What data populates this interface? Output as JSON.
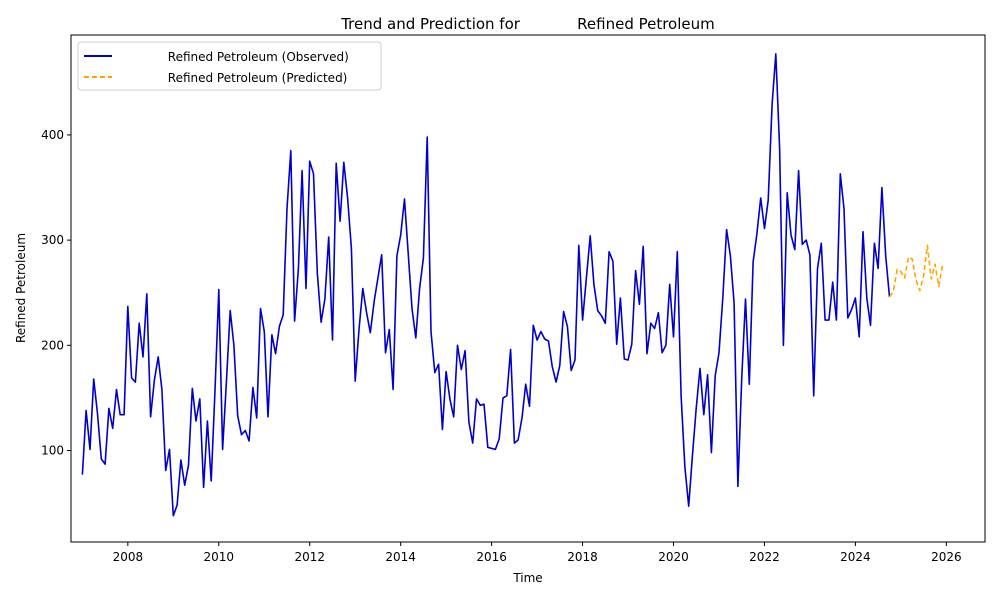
{
  "chart_data": {
    "type": "line",
    "title": "Trend and Prediction for            Refined Petroleum",
    "xlabel": "Time",
    "ylabel": "Refined Petroleum",
    "xlim": [
      2006.75,
      2026.85
    ],
    "ylim": [
      13,
      495
    ],
    "x_ticks": [
      2008,
      2010,
      2012,
      2014,
      2016,
      2018,
      2020,
      2022,
      2024,
      2026
    ],
    "y_ticks": [
      100,
      200,
      300,
      400
    ],
    "grid": false,
    "legend_position": "top-left",
    "colors": {
      "observed": "#0000cd",
      "predicted": "#ffa500"
    },
    "series": [
      {
        "name": "            Refined Petroleum (Observed)",
        "style": "solid",
        "x": [
          2007.0,
          2007.083,
          2007.167,
          2007.25,
          2007.333,
          2007.417,
          2007.5,
          2007.583,
          2007.667,
          2007.75,
          2007.833,
          2007.917,
          2008.0,
          2008.083,
          2008.167,
          2008.25,
          2008.333,
          2008.417,
          2008.5,
          2008.583,
          2008.667,
          2008.75,
          2008.833,
          2008.917,
          2009.0,
          2009.083,
          2009.167,
          2009.25,
          2009.333,
          2009.417,
          2009.5,
          2009.583,
          2009.667,
          2009.75,
          2009.833,
          2009.917,
          2010.0,
          2010.083,
          2010.167,
          2010.25,
          2010.333,
          2010.417,
          2010.5,
          2010.583,
          2010.667,
          2010.75,
          2010.833,
          2010.917,
          2011.0,
          2011.083,
          2011.167,
          2011.25,
          2011.333,
          2011.417,
          2011.5,
          2011.583,
          2011.667,
          2011.75,
          2011.833,
          2011.917,
          2012.0,
          2012.083,
          2012.167,
          2012.25,
          2012.333,
          2012.417,
          2012.5,
          2012.583,
          2012.667,
          2012.75,
          2012.833,
          2012.917,
          2013.0,
          2013.083,
          2013.167,
          2013.25,
          2013.333,
          2013.417,
          2013.5,
          2013.583,
          2013.667,
          2013.75,
          2013.833,
          2013.917,
          2014.0,
          2014.083,
          2014.167,
          2014.25,
          2014.333,
          2014.417,
          2014.5,
          2014.583,
          2014.667,
          2014.75,
          2014.833,
          2014.917,
          2015.0,
          2015.083,
          2015.167,
          2015.25,
          2015.333,
          2015.417,
          2015.5,
          2015.583,
          2015.667,
          2015.75,
          2015.833,
          2015.917,
          2016.0,
          2016.083,
          2016.167,
          2016.25,
          2016.333,
          2016.417,
          2016.5,
          2016.583,
          2016.667,
          2016.75,
          2016.833,
          2016.917,
          2017.0,
          2017.083,
          2017.167,
          2017.25,
          2017.333,
          2017.417,
          2017.5,
          2017.583,
          2017.667,
          2017.75,
          2017.833,
          2017.917,
          2018.0,
          2018.083,
          2018.167,
          2018.25,
          2018.333,
          2018.417,
          2018.5,
          2018.583,
          2018.667,
          2018.75,
          2018.833,
          2018.917,
          2019.0,
          2019.083,
          2019.167,
          2019.25,
          2019.333,
          2019.417,
          2019.5,
          2019.583,
          2019.667,
          2019.75,
          2019.833,
          2019.917,
          2020.0,
          2020.083,
          2020.167,
          2020.25,
          2020.333,
          2020.417,
          2020.5,
          2020.583,
          2020.667,
          2020.75,
          2020.833,
          2020.917,
          2021.0,
          2021.083,
          2021.167,
          2021.25,
          2021.333,
          2021.417,
          2021.5,
          2021.583,
          2021.667,
          2021.75,
          2021.833,
          2021.917,
          2022.0,
          2022.083,
          2022.167,
          2022.25,
          2022.333,
          2022.417,
          2022.5,
          2022.583,
          2022.667,
          2022.75,
          2022.833,
          2022.917,
          2023.0,
          2023.083,
          2023.167,
          2023.25,
          2023.333,
          2023.417,
          2023.5,
          2023.583,
          2023.667,
          2023.75,
          2023.833,
          2023.917,
          2024.0,
          2024.083,
          2024.167,
          2024.25,
          2024.333,
          2024.417,
          2024.5,
          2024.583,
          2024.667,
          2024.75
        ],
        "values": [
          77,
          138,
          101,
          168,
          135,
          92,
          87,
          140,
          121,
          158,
          134,
          134,
          237,
          169,
          165,
          221,
          189,
          249,
          132,
          167,
          189,
          158,
          81,
          101,
          38,
          48,
          91,
          67,
          86,
          159,
          128,
          149,
          65,
          128,
          71,
          157,
          253,
          101,
          165,
          233,
          200,
          133,
          115,
          119,
          109,
          160,
          131,
          235,
          213,
          132,
          210,
          192,
          218,
          229,
          330,
          385,
          223,
          273,
          366,
          254,
          375,
          363,
          269,
          222,
          244,
          303,
          205,
          373,
          318,
          374,
          340,
          292,
          166,
          215,
          254,
          231,
          212,
          242,
          264,
          286,
          193,
          215,
          158,
          285,
          305,
          339,
          286,
          235,
          207,
          254,
          283,
          398,
          213,
          174,
          182,
          120,
          175,
          149,
          132,
          200,
          177,
          195,
          127,
          107,
          149,
          143,
          144,
          103,
          102,
          101,
          111,
          150,
          152,
          196,
          107,
          110,
          131,
          163,
          142,
          219,
          205,
          213,
          206,
          204,
          180,
          165,
          181,
          232,
          218,
          176,
          186,
          295,
          224,
          263,
          304,
          258,
          233,
          228,
          221,
          289,
          280,
          201,
          245,
          187,
          186,
          201,
          271,
          239,
          294,
          192,
          221,
          216,
          231,
          193,
          200,
          258,
          208,
          289,
          152,
          84,
          47,
          96,
          140,
          178,
          134,
          172,
          98,
          171,
          193,
          245,
          310,
          285,
          240,
          66,
          168,
          244,
          163,
          279,
          306,
          340,
          311,
          338,
          429,
          477,
          388,
          200,
          345,
          305,
          291,
          366,
          296,
          300,
          286,
          152,
          273,
          297,
          224,
          224,
          260,
          224,
          363,
          330,
          226,
          234,
          245,
          208,
          308,
          245,
          219,
          297,
          273,
          350,
          285,
          246
        ]
      },
      {
        "name": "            Refined Petroleum (Predicted)",
        "style": "dashed",
        "x": [
          2024.75,
          2024.833,
          2024.917,
          2025.0,
          2025.083,
          2025.167,
          2025.25,
          2025.333,
          2025.417,
          2025.5,
          2025.583,
          2025.667,
          2025.75,
          2025.833,
          2025.917
        ],
        "values": [
          246,
          251,
          272,
          270,
          264,
          284,
          282,
          262,
          252,
          266,
          295,
          263,
          277,
          256,
          277
        ]
      }
    ]
  }
}
